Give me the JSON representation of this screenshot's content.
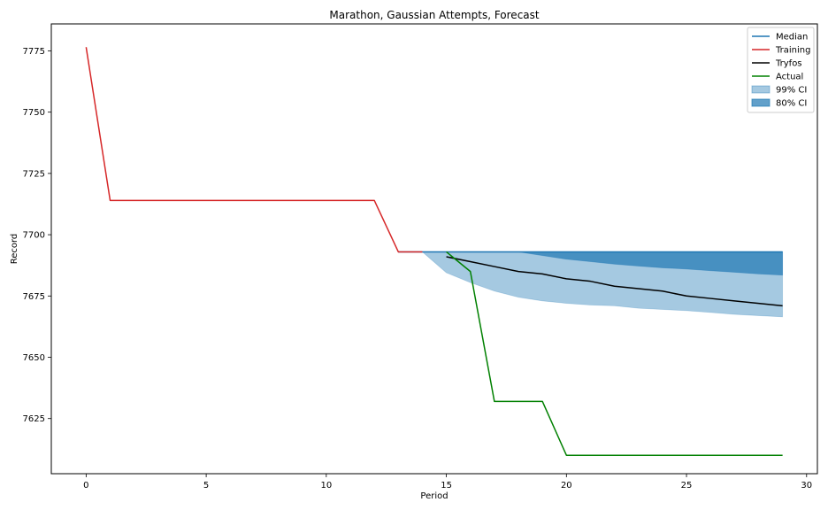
{
  "chart_data": {
    "type": "line",
    "title": "Marathon, Gaussian Attempts, Forecast",
    "xlabel": "Period",
    "ylabel": "Record",
    "xlim": [
      -1.45,
      30.45
    ],
    "ylim": [
      7602.5,
      7786
    ],
    "xticks": [
      0,
      5,
      10,
      15,
      20,
      25,
      30
    ],
    "yticks": [
      7625,
      7650,
      7675,
      7700,
      7725,
      7750,
      7775
    ],
    "grid": false,
    "legend_position": "top-right",
    "legend": [
      {
        "label": "Median",
        "kind": "line",
        "color": "#1f77b4"
      },
      {
        "label": "Training",
        "kind": "line",
        "color": "#d62728"
      },
      {
        "label": "Tryfos",
        "kind": "line",
        "color": "#000000"
      },
      {
        "label": "Actual",
        "kind": "line",
        "color": "#008000"
      },
      {
        "label": "99% CI",
        "kind": "patch",
        "color": "#1f77b4",
        "opacity": 0.4
      },
      {
        "label": "80% CI",
        "kind": "patch",
        "color": "#1f77b4",
        "opacity": 0.7
      }
    ],
    "bands": [
      {
        "name": "99% CI",
        "color": "#1f77b4",
        "opacity": 0.4,
        "x": [
          13,
          14,
          15,
          16,
          17,
          18,
          19,
          20,
          21,
          22,
          23,
          24,
          25,
          26,
          27,
          28,
          29
        ],
        "upper": [
          7693,
          7693,
          7693,
          7693,
          7693,
          7693,
          7693,
          7693,
          7693,
          7693,
          7693,
          7693,
          7693,
          7693,
          7693,
          7693,
          7693
        ],
        "lower": [
          7693,
          7693,
          7684.5,
          7680.5,
          7677,
          7674.5,
          7673,
          7672,
          7671.3,
          7671,
          7670,
          7669.5,
          7669,
          7668.3,
          7667.5,
          7667,
          7666.5
        ]
      },
      {
        "name": "80% CI",
        "color": "#1f77b4",
        "opacity": 0.7,
        "x": [
          18,
          19,
          20,
          21,
          22,
          23,
          24,
          25,
          26,
          27,
          28,
          29
        ],
        "upper": [
          7693,
          7693,
          7693,
          7693,
          7693,
          7693,
          7693,
          7693,
          7693,
          7693,
          7693,
          7693
        ],
        "lower": [
          7693,
          7691.5,
          7690,
          7689,
          7688,
          7687.2,
          7686.5,
          7686,
          7685.3,
          7684.7,
          7684,
          7683.5
        ]
      }
    ],
    "series": [
      {
        "name": "Median",
        "color": "#1f77b4",
        "x": [
          13,
          14,
          15,
          16,
          17,
          18,
          19,
          20,
          21,
          22,
          23,
          24,
          25,
          26,
          27,
          28,
          29
        ],
        "y": [
          7693,
          7693,
          7693,
          7693,
          7693,
          7693,
          7693,
          7693,
          7693,
          7693,
          7693,
          7693,
          7693,
          7693,
          7693,
          7693,
          7693
        ]
      },
      {
        "name": "Training",
        "color": "#d62728",
        "x": [
          0,
          1,
          2,
          3,
          4,
          5,
          6,
          7,
          8,
          9,
          10,
          11,
          12,
          13,
          14
        ],
        "y": [
          7776.5,
          7714,
          7714,
          7714,
          7714,
          7714,
          7714,
          7714,
          7714,
          7714,
          7714,
          7714,
          7714,
          7693,
          7693
        ]
      },
      {
        "name": "Tryfos",
        "color": "#000000",
        "x": [
          15,
          16,
          17,
          18,
          19,
          20,
          21,
          22,
          23,
          24,
          25,
          26,
          27,
          28,
          29
        ],
        "y": [
          7691,
          7689,
          7687,
          7685,
          7684,
          7682,
          7681,
          7679,
          7678,
          7677,
          7675,
          7674,
          7673,
          7672,
          7671
        ]
      },
      {
        "name": "Actual",
        "color": "#008000",
        "x": [
          15,
          16,
          17,
          18,
          19,
          20,
          21,
          22,
          23,
          24,
          25,
          26,
          27,
          28,
          29
        ],
        "y": [
          7693,
          7685,
          7632,
          7632,
          7632,
          7610,
          7610,
          7610,
          7610,
          7610,
          7610,
          7610,
          7610,
          7610,
          7610
        ]
      }
    ]
  }
}
